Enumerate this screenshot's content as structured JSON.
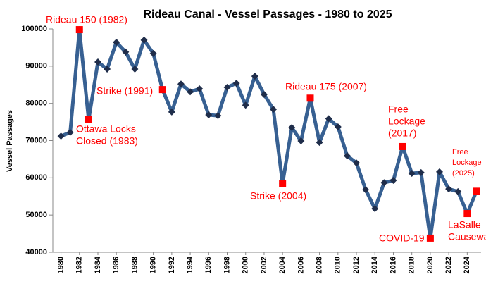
{
  "chart_data": {
    "type": "line",
    "title": "Rideau Canal - Vessel Passages - 1980 to 2025",
    "y_label": "Vessel Passages",
    "x": [
      1980,
      1981,
      1982,
      1983,
      1984,
      1985,
      1986,
      1987,
      1988,
      1989,
      1990,
      1991,
      1992,
      1993,
      1994,
      1995,
      1996,
      1997,
      1998,
      1999,
      2000,
      2001,
      2002,
      2003,
      2004,
      2005,
      2006,
      2007,
      2008,
      2009,
      2010,
      2011,
      2012,
      2013,
      2014,
      2015,
      2016,
      2017,
      2018,
      2019,
      2020,
      2021,
      2022,
      2023,
      2024,
      2025
    ],
    "series": [
      {
        "color": "#376092",
        "marker_color": "#1f2d4a",
        "values": [
          71200,
          72200,
          99800,
          75600,
          91100,
          89200,
          96400,
          93800,
          89200,
          97000,
          93400,
          83700,
          77700,
          85200,
          83100,
          83900,
          76900,
          76700,
          84300,
          85400,
          79500,
          87300,
          82400,
          78400,
          58500,
          73500,
          69900,
          81400,
          69500,
          75900,
          73700,
          65900,
          64000,
          56800,
          51700,
          58700,
          59300,
          68400,
          61200,
          61400,
          43800,
          61600,
          57000,
          56300,
          50400,
          56400
        ]
      }
    ],
    "xlim": [
      1979.5,
      2025.5
    ],
    "xticks": [
      1980,
      1982,
      1984,
      1986,
      1988,
      1990,
      1992,
      1994,
      1996,
      1998,
      2000,
      2002,
      2004,
      2006,
      2008,
      2010,
      2012,
      2014,
      2016,
      2018,
      2020,
      2022,
      2024
    ],
    "ylim": [
      40000,
      100000
    ],
    "yticks": [
      40000,
      50000,
      60000,
      70000,
      80000,
      90000,
      100000
    ],
    "annotation_color": "#ff0000",
    "annotations": [
      {
        "x": 1982,
        "lines": [
          "Rideau 150 (1982)"
        ]
      },
      {
        "x": 1983,
        "lines": [
          "Ottawa Locks",
          "Closed (1983)"
        ]
      },
      {
        "x": 1991,
        "lines": [
          "Strike (1991)"
        ]
      },
      {
        "x": 2007,
        "lines": [
          "Rideau 175 (2007)"
        ]
      },
      {
        "x": 2004,
        "lines": [
          "Strike (2004)"
        ]
      },
      {
        "x": 2017,
        "lines": [
          "Free",
          "Lockage",
          "(2017)"
        ]
      },
      {
        "x": 2020,
        "lines": [
          "COVID-19"
        ]
      },
      {
        "x": 2024,
        "lines": [
          "LaSalle",
          "Causeway"
        ]
      },
      {
        "x": 2025,
        "lines": [
          "Free",
          "Lockage",
          "(2025)"
        ]
      }
    ]
  }
}
